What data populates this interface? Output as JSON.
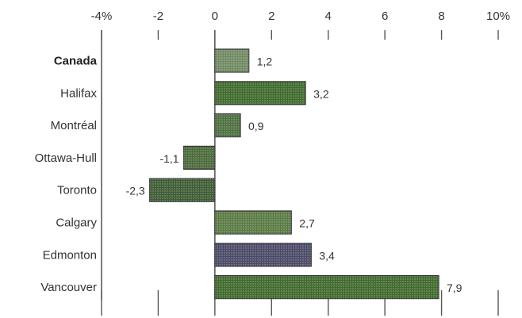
{
  "chart_data": {
    "type": "bar",
    "orientation": "horizontal",
    "title": "",
    "xlabel": "",
    "ylabel": "",
    "xlim": [
      -4,
      10
    ],
    "ticks": [
      -4,
      -2,
      0,
      2,
      4,
      6,
      8,
      10
    ],
    "tick_labels": [
      "-4%",
      "-2",
      "0",
      "2",
      "4",
      "6",
      "8",
      "10%"
    ],
    "categories": [
      "Canada",
      "Halifax",
      "Montréal",
      "Ottawa-Hull",
      "Toronto",
      "Calgary",
      "Edmonton",
      "Vancouver"
    ],
    "values": [
      1.2,
      3.2,
      0.9,
      -1.1,
      -2.3,
      2.7,
      3.4,
      7.9
    ],
    "value_labels": [
      "1,2",
      "3,2",
      "0,9",
      "-1,1",
      "-2,3",
      "2,7",
      "3,4",
      "7,9"
    ],
    "bold_category": "Canada",
    "bar_colors": [
      "#6f8a62",
      "#3f6a2c",
      "#4d7040",
      "#4a6a3a",
      "#3e5c34",
      "#5a7a44",
      "#4a4a66",
      "#3f6a2c"
    ],
    "grid": false,
    "legend": "none"
  }
}
